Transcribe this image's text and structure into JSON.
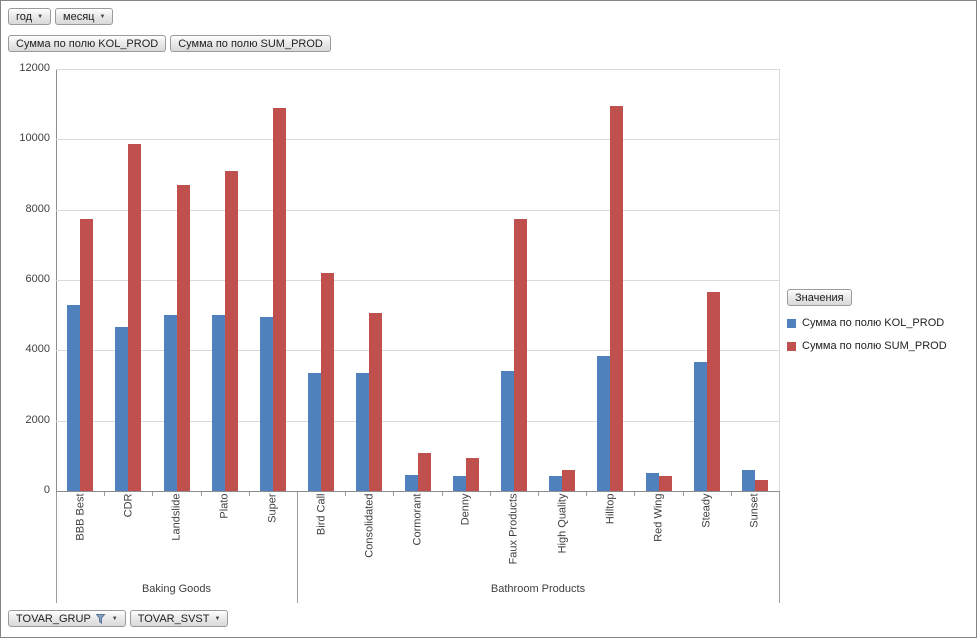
{
  "filters": {
    "year_label": "год",
    "month_label": "месяц"
  },
  "value_fields": {
    "kol_prod_label": "Сумма по полю KOL_PROD",
    "sum_prod_label": "Сумма по полю SUM_PROD"
  },
  "axis_fields": {
    "tovar_grup_label": "TOVAR_GRUP",
    "tovar_svst_label": "TOVAR_SVST"
  },
  "legend": {
    "title": "Значения",
    "entries": [
      {
        "label": "Сумма по полю KOL_PROD",
        "color": "#4f81bd"
      },
      {
        "label": "Сумма по полю SUM_PROD",
        "color": "#c0504d"
      }
    ]
  },
  "chart_data": {
    "type": "bar",
    "title": "",
    "xlabel": "",
    "ylabel": "",
    "ylim": [
      0,
      12000
    ],
    "ytick_step": 2000,
    "grid": true,
    "legend_position": "right",
    "groups": [
      {
        "label": "Baking Goods",
        "categories": [
          "BBB Best",
          "CDR",
          "Landslide",
          "Plato",
          "Super"
        ]
      },
      {
        "label": "Bathroom Products",
        "categories": [
          "Bird Call",
          "Consolidated",
          "Cormorant",
          "Denny",
          "Faux Products",
          "High Quality",
          "Hilltop",
          "Red Wing",
          "Steady",
          "Sunset"
        ]
      }
    ],
    "categories": [
      "BBB Best",
      "CDR",
      "Landslide",
      "Plato",
      "Super",
      "Bird Call",
      "Consolidated",
      "Cormorant",
      "Denny",
      "Faux Products",
      "High Quality",
      "Hilltop",
      "Red Wing",
      "Steady",
      "Sunset"
    ],
    "series": [
      {
        "name": "Сумма по полю KOL_PROD",
        "color": "#4f81bd",
        "values": [
          5280,
          4650,
          5000,
          5000,
          4950,
          3350,
          3360,
          460,
          430,
          3410,
          430,
          3840,
          510,
          3670,
          600
        ]
      },
      {
        "name": "Сумма по полю SUM_PROD",
        "color": "#c0504d",
        "values": [
          7730,
          9870,
          8700,
          9100,
          10900,
          6200,
          5060,
          1080,
          940,
          7730,
          600,
          10950,
          430,
          5660,
          320
        ]
      }
    ]
  }
}
